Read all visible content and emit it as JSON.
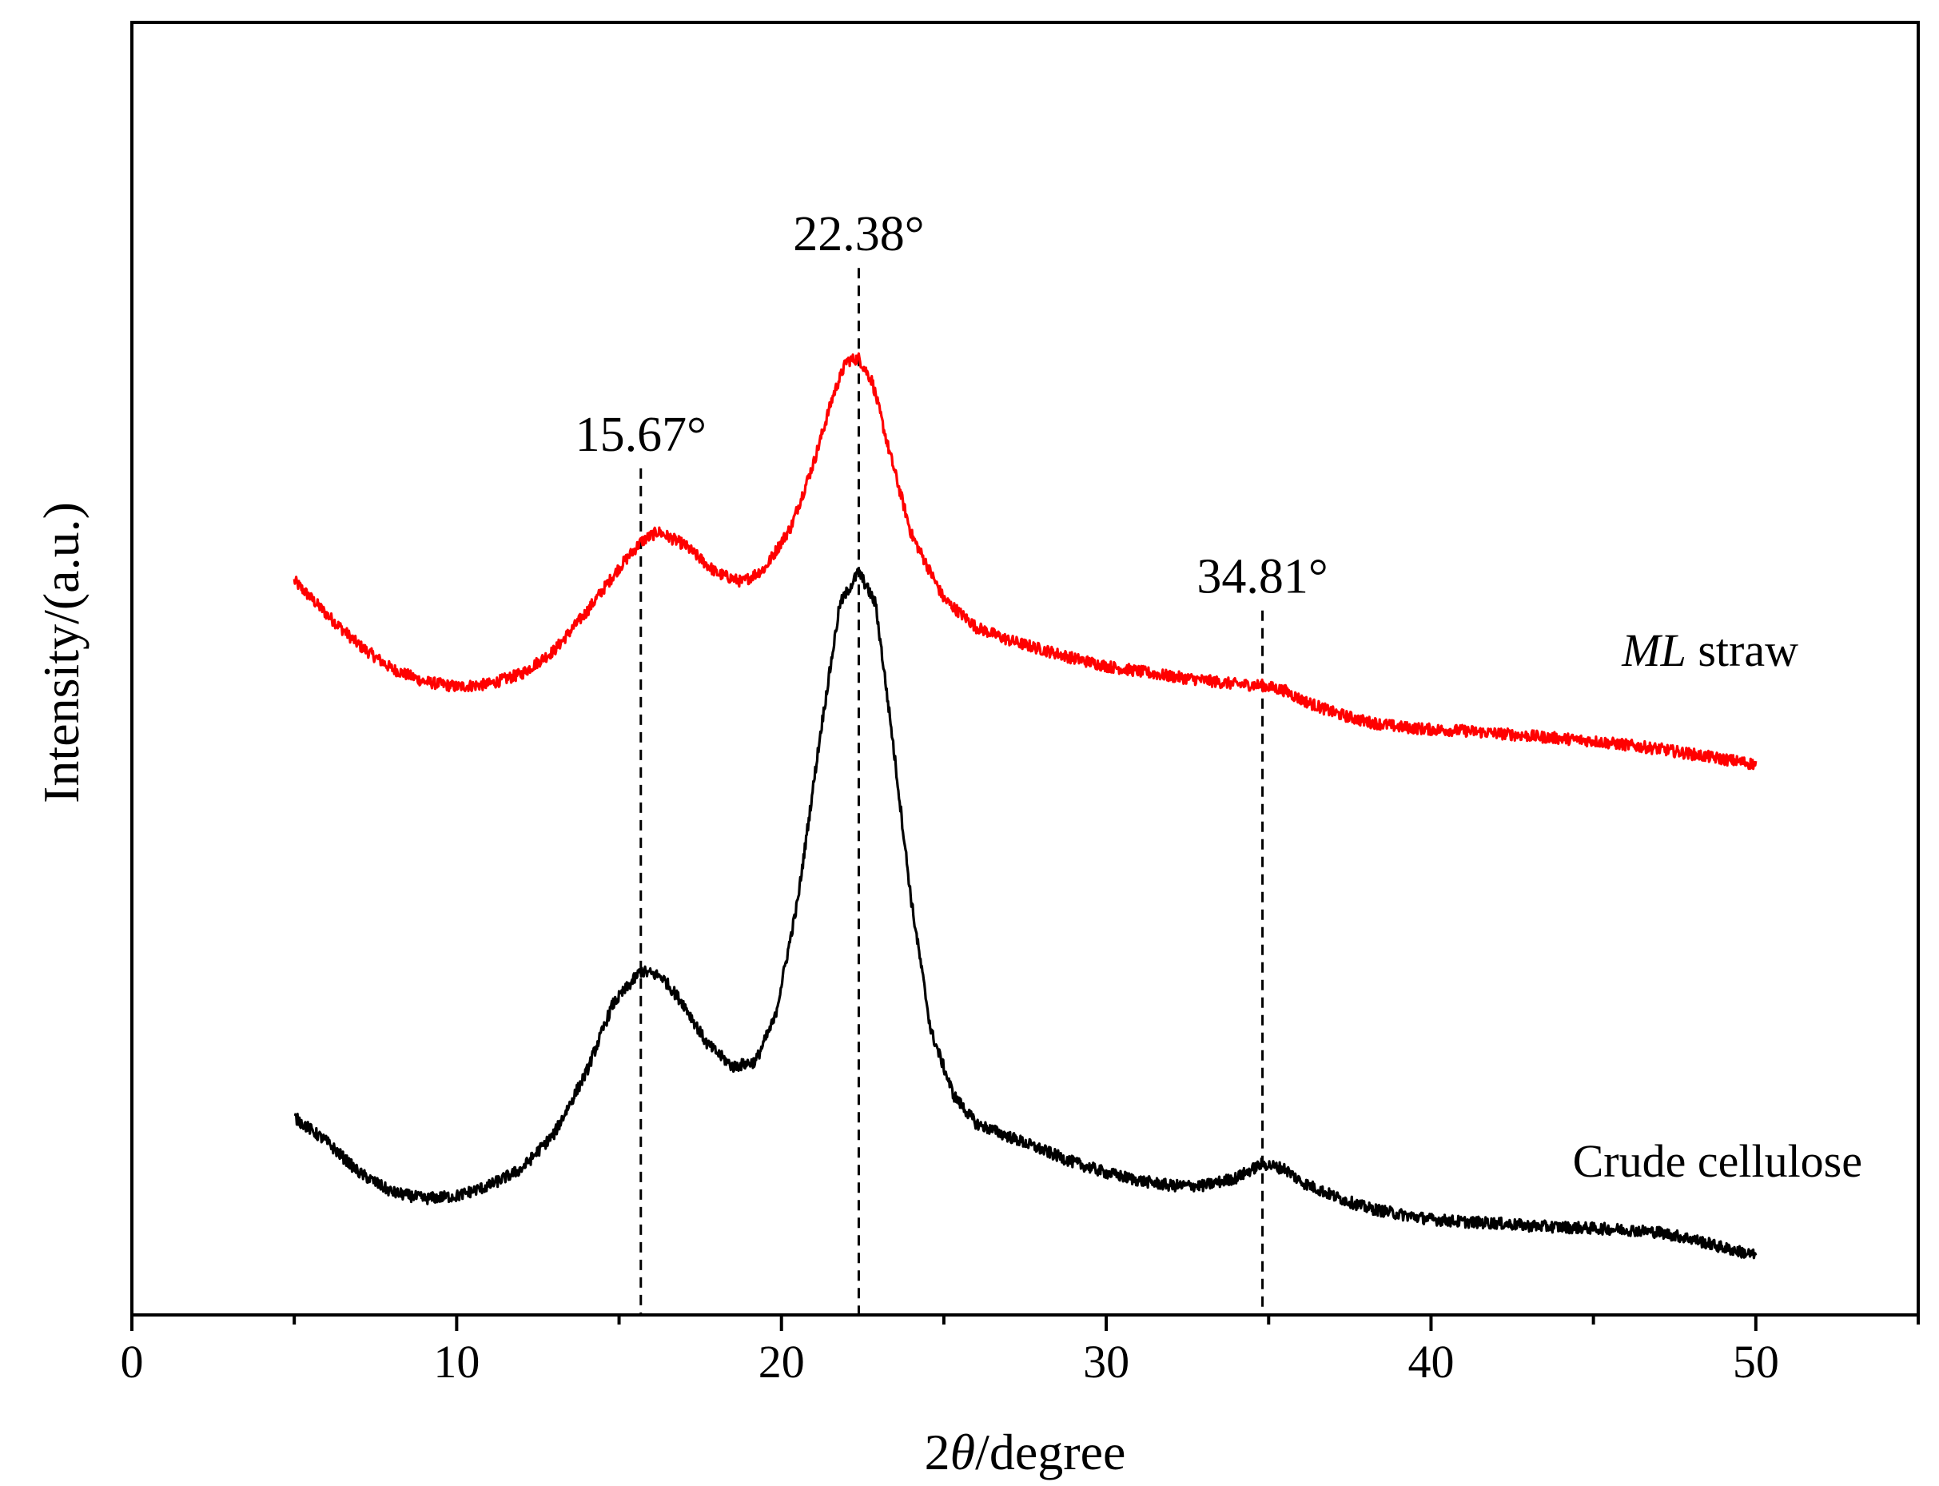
{
  "chart_data": {
    "type": "line",
    "title": "",
    "xlabel_prefix": "2",
    "xlabel_symbol": "θ",
    "xlabel_suffix": "/degree",
    "ylabel": "Intensity/(a.u.)",
    "xlim": [
      0,
      55
    ],
    "xticks": [
      0,
      10,
      20,
      30,
      40,
      50
    ],
    "xtick_labels": [
      "0",
      "10",
      "20",
      "30",
      "40",
      "50"
    ],
    "xminor_step": 5,
    "ylim": [
      0,
      100
    ],
    "yticks": [],
    "grid": false,
    "series": [
      {
        "name": "ML straw",
        "name_italic": "ML",
        "name_rest": " straw",
        "color": "#ff0000",
        "points": [
          [
            5,
            56.8
          ],
          [
            6,
            54.2
          ],
          [
            7,
            51.8
          ],
          [
            8,
            50.0
          ],
          [
            9,
            49.0
          ],
          [
            10,
            48.6
          ],
          [
            11,
            48.8
          ],
          [
            12,
            49.6
          ],
          [
            13,
            51.4
          ],
          [
            14,
            54.4
          ],
          [
            15,
            57.8
          ],
          [
            15.67,
            59.8
          ],
          [
            16.2,
            60.6
          ],
          [
            17,
            59.6
          ],
          [
            18,
            57.4
          ],
          [
            18.8,
            56.7
          ],
          [
            19.5,
            57.8
          ],
          [
            20.3,
            61.0
          ],
          [
            21,
            66.0
          ],
          [
            21.6,
            71.2
          ],
          [
            22.0,
            73.8
          ],
          [
            22.38,
            74.0
          ],
          [
            22.8,
            72.2
          ],
          [
            23.3,
            67.0
          ],
          [
            24,
            60.4
          ],
          [
            25,
            55.4
          ],
          [
            26,
            53.2
          ],
          [
            27,
            52.2
          ],
          [
            28,
            51.5
          ],
          [
            29,
            50.8
          ],
          [
            30,
            50.2
          ],
          [
            31,
            49.8
          ],
          [
            32,
            49.4
          ],
          [
            33,
            49.1
          ],
          [
            34,
            48.8
          ],
          [
            34.81,
            48.7
          ],
          [
            35.5,
            48.3
          ],
          [
            36,
            47.6
          ],
          [
            37,
            46.6
          ],
          [
            38,
            45.9
          ],
          [
            39,
            45.5
          ],
          [
            40,
            45.3
          ],
          [
            41,
            45.2
          ],
          [
            42,
            45.0
          ],
          [
            43,
            44.8
          ],
          [
            44,
            44.6
          ],
          [
            45,
            44.4
          ],
          [
            46,
            44.1
          ],
          [
            47,
            43.8
          ],
          [
            48,
            43.4
          ],
          [
            49,
            43.0
          ],
          [
            50,
            42.6
          ]
        ]
      },
      {
        "name": "Crude cellulose",
        "color": "#000000",
        "points": [
          [
            5,
            15.3
          ],
          [
            6,
            13.4
          ],
          [
            7,
            11.0
          ],
          [
            8,
            9.5
          ],
          [
            9,
            9.0
          ],
          [
            10,
            9.2
          ],
          [
            11,
            10.0
          ],
          [
            12,
            11.3
          ],
          [
            13,
            14.0
          ],
          [
            14,
            18.8
          ],
          [
            14.8,
            24.0
          ],
          [
            15.67,
            26.6
          ],
          [
            16.3,
            26.2
          ],
          [
            17,
            24.0
          ],
          [
            17.7,
            21.0
          ],
          [
            18.5,
            19.2
          ],
          [
            19.2,
            19.6
          ],
          [
            19.8,
            23.0
          ],
          [
            20.5,
            32.0
          ],
          [
            21.2,
            45.0
          ],
          [
            21.8,
            55.0
          ],
          [
            22.38,
            57.5
          ],
          [
            22.9,
            55.0
          ],
          [
            23.4,
            45.0
          ],
          [
            24,
            32.0
          ],
          [
            24.6,
            22.0
          ],
          [
            25.3,
            17.0
          ],
          [
            26,
            14.8
          ],
          [
            27,
            13.8
          ],
          [
            28,
            12.8
          ],
          [
            29,
            11.8
          ],
          [
            30,
            11.0
          ],
          [
            31,
            10.4
          ],
          [
            32,
            10.0
          ],
          [
            33,
            10.0
          ],
          [
            34,
            10.6
          ],
          [
            34.81,
            11.7
          ],
          [
            35.5,
            11.3
          ],
          [
            36,
            10.3
          ],
          [
            37,
            9.2
          ],
          [
            38,
            8.3
          ],
          [
            39,
            7.8
          ],
          [
            40,
            7.4
          ],
          [
            41,
            7.2
          ],
          [
            42,
            7.1
          ],
          [
            43,
            6.9
          ],
          [
            44,
            6.8
          ],
          [
            45,
            6.7
          ],
          [
            46,
            6.6
          ],
          [
            47,
            6.4
          ],
          [
            48,
            5.9
          ],
          [
            49,
            5.2
          ],
          [
            50,
            4.6
          ]
        ]
      }
    ],
    "peaks": [
      {
        "x": 15.67,
        "label": "15.67°",
        "top": 65.5
      },
      {
        "x": 22.38,
        "label": "22.38°",
        "top": 81.0
      },
      {
        "x": 34.81,
        "label": "34.81°",
        "top": 54.5
      }
    ]
  }
}
